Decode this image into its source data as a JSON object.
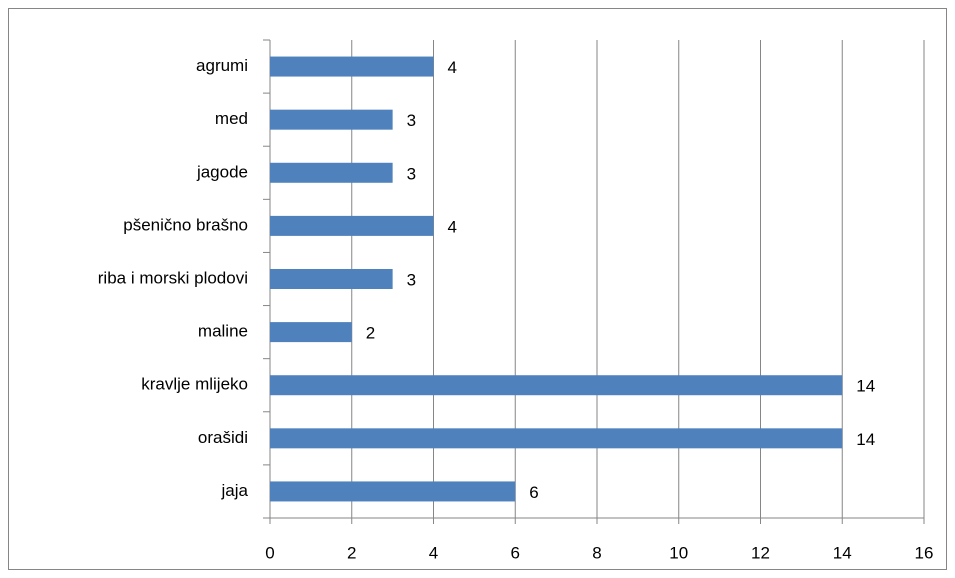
{
  "chart_data": {
    "type": "hbar",
    "categories": [
      "agrumi",
      "med",
      "jagode",
      "pšenično brašno",
      "riba i morski plodovi",
      "maline",
      "kravlje mlijeko",
      "orašidi",
      "jaja"
    ],
    "values": [
      4,
      3,
      3,
      4,
      3,
      2,
      14,
      14,
      6
    ],
    "color": "#4f81bd",
    "xlim": [
      0,
      16
    ],
    "xticks": [
      0,
      2,
      4,
      6,
      8,
      10,
      12,
      14,
      16
    ],
    "grid": true
  }
}
